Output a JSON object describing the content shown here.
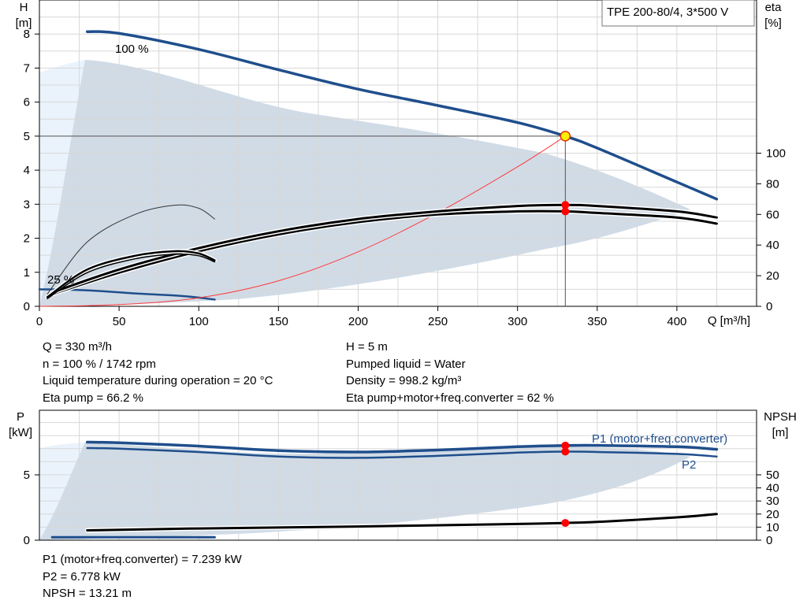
{
  "chart_data": [
    {
      "type": "line",
      "title": "TPE 200-80/4, 3*500 V",
      "xlabel": "Q [m³/h]",
      "ylabel": "H\n[m]",
      "y2label": "eta\n[%]",
      "xlim": [
        0,
        450
      ],
      "ylim": [
        0,
        9
      ],
      "y2lim": [
        0,
        180
      ],
      "x_ticks": [
        0,
        50,
        100,
        150,
        200,
        250,
        300,
        350,
        400
      ],
      "y_ticks": [
        0,
        1,
        2,
        3,
        4,
        5,
        6,
        7,
        8
      ],
      "y2_ticks": [
        0,
        20,
        40,
        60,
        80,
        100
      ],
      "grid": true,
      "annotations": [
        "100 %",
        "25 %"
      ],
      "duty_point": {
        "Q": 330,
        "H": 5
      },
      "series": [
        {
          "id": "h100",
          "axis": "H",
          "color": "#1f4e8c",
          "x": [
            30,
            50,
            100,
            150,
            200,
            250,
            300,
            330,
            350,
            400,
            425
          ],
          "y": [
            8.07,
            8.02,
            7.55,
            6.95,
            6.38,
            5.9,
            5.4,
            5.0,
            4.65,
            3.65,
            3.15
          ]
        },
        {
          "id": "h25",
          "axis": "H",
          "color": "#1f4e8c",
          "x": [
            0,
            30,
            60,
            90,
            110
          ],
          "y": [
            0.5,
            0.47,
            0.38,
            0.3,
            0.2
          ]
        },
        {
          "id": "system",
          "axis": "H",
          "color": "#ff3a3a",
          "x": [
            0,
            50,
            100,
            150,
            200,
            250,
            300,
            330
          ],
          "y": [
            0,
            0.05,
            0.25,
            0.75,
            1.6,
            2.75,
            4.1,
            5.0
          ]
        },
        {
          "id": "eta_total",
          "axis": "eta",
          "color": "#000000",
          "x": [
            8,
            50,
            100,
            150,
            200,
            250,
            300,
            330,
            350,
            400,
            425
          ],
          "y": [
            8,
            22,
            36,
            47,
            55,
            60,
            62,
            62,
            61,
            58,
            54
          ]
        },
        {
          "id": "eta_pump",
          "axis": "eta",
          "color": "#000000",
          "x": [
            8,
            50,
            100,
            150,
            200,
            250,
            300,
            330,
            350,
            400,
            425
          ],
          "y": [
            9,
            24,
            38,
            49,
            57,
            62,
            65.5,
            66.2,
            65.5,
            62,
            58
          ]
        },
        {
          "id": "eta_low_speed_1",
          "axis": "eta",
          "color": "#000000",
          "x": [
            5,
            30,
            60,
            85,
            100,
            110
          ],
          "y": [
            6,
            24,
            33,
            36,
            34.5,
            30
          ]
        },
        {
          "id": "eta_low_speed_2",
          "axis": "eta",
          "color": "#000000",
          "x": [
            5,
            30,
            60,
            85,
            100,
            110
          ],
          "y": [
            5,
            22,
            31,
            34,
            33,
            29
          ]
        },
        {
          "id": "eta_low_speed_3",
          "axis": "eta",
          "color": "#333333",
          "x": [
            5,
            30,
            60,
            85,
            100,
            110
          ],
          "y": [
            8,
            42,
            60,
            66,
            64,
            57
          ]
        }
      ]
    },
    {
      "type": "line",
      "ylabel": "P\n[kW]",
      "y2label": "NPSH\n[m]",
      "xlim": [
        0,
        450
      ],
      "ylim": [
        0,
        9
      ],
      "y2lim": [
        0,
        100
      ],
      "y_ticks": [
        0,
        5
      ],
      "y2_ticks": [
        0,
        10,
        20,
        30,
        40,
        50
      ],
      "grid": true,
      "series": [
        {
          "id": "p1",
          "name": "P1 (motor+freq.converter)",
          "axis": "P",
          "color": "#1f4e8c",
          "x": [
            30,
            50,
            100,
            150,
            200,
            250,
            300,
            330,
            350,
            400,
            425
          ],
          "y": [
            7.5,
            7.45,
            7.2,
            6.85,
            6.75,
            6.9,
            7.15,
            7.239,
            7.25,
            7.15,
            6.95
          ]
        },
        {
          "id": "p2",
          "name": "P2",
          "axis": "P",
          "color": "#1f4e8c",
          "x": [
            30,
            50,
            100,
            150,
            200,
            250,
            300,
            330,
            350,
            400,
            425
          ],
          "y": [
            7.05,
            7.0,
            6.75,
            6.4,
            6.3,
            6.45,
            6.7,
            6.778,
            6.75,
            6.6,
            6.4
          ]
        },
        {
          "id": "p_low",
          "axis": "P",
          "color": "#1f4e8c",
          "x": [
            8,
            50,
            110
          ],
          "y": [
            0.22,
            0.22,
            0.22
          ]
        },
        {
          "id": "npsh",
          "name": "NPSH",
          "axis": "NPSH",
          "color": "#000000",
          "x": [
            30,
            100,
            200,
            300,
            330,
            350,
            400,
            425
          ],
          "y": [
            7.5,
            9,
            10.5,
            12.4,
            13.21,
            14,
            17.5,
            20
          ]
        }
      ]
    }
  ],
  "duty_info": {
    "q": "Q = 330 m³/h",
    "n": "n = 100 % / 1742 rpm",
    "temp": "Liquid temperature during operation = 20 °C",
    "eta_pump": "Eta pump = 66.2 %",
    "h": "H = 5 m",
    "liquid": "Pumped liquid = Water",
    "density": "Density = 998.2 kg/m³",
    "eta_total": "Eta pump+motor+freq.converter = 62 %"
  },
  "power_info": {
    "p1": "P1 (motor+freq.converter) = 7.239 kW",
    "p2": "P2 = 6.778 kW",
    "npsh": "NPSH = 13.21 m"
  },
  "colors": {
    "curve_blue": "#1f4e8c",
    "area_fill": "#d0dbe6",
    "area_light": "#eaf3fc",
    "duty_red": "#ff0000",
    "duty_yellow": "#ffee00",
    "system_red": "#ff3a3a"
  }
}
